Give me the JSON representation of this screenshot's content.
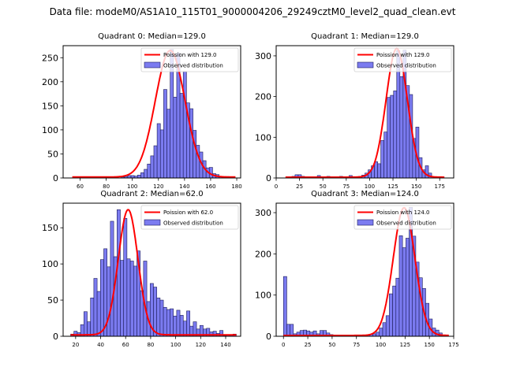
{
  "suptitle": "Data file: modeM0/AS1A10_115T01_9000004206_29249cztM0_level2_quad_clean.evt",
  "colors": {
    "bar_fill": "#7b7bf0",
    "bar_edge": "#1c1c5a",
    "poisson": "#ff0000"
  },
  "chart_data": [
    {
      "type": "bar",
      "title": "Quadrant 0: Median=129.0",
      "median": 129.0,
      "legend": {
        "placement": "top-right",
        "entries": [
          "Poission with 129.0",
          "Observed distribution"
        ]
      },
      "xlim": [
        47,
        183
      ],
      "ylim": [
        0,
        275
      ],
      "xticks": [
        60,
        80,
        100,
        120,
        140,
        160,
        180
      ],
      "yticks": [
        0,
        50,
        100,
        150,
        200,
        250
      ],
      "bin_start": 54,
      "bin_width": 2.5,
      "values": [
        0,
        0,
        0,
        0,
        0,
        0,
        0,
        0,
        0,
        0,
        0,
        1,
        0,
        0,
        0,
        2,
        3,
        5,
        5,
        4,
        6,
        11,
        18,
        29,
        46,
        67,
        113,
        100,
        184,
        143,
        267,
        168,
        260,
        176,
        221,
        156,
        144,
        99,
        68,
        54,
        36,
        21,
        22,
        9,
        7,
        3,
        0,
        3,
        0,
        0
      ],
      "poisson_peak": 265
    },
    {
      "type": "bar",
      "title": "Quadrant 1: Median=129.0",
      "median": 129.0,
      "legend": {
        "placement": "top-right",
        "entries": [
          "Poission with 129.0",
          "Observed distribution"
        ]
      },
      "xlim": [
        0,
        190
      ],
      "ylim": [
        0,
        325
      ],
      "xticks": [
        0,
        25,
        50,
        75,
        100,
        125,
        150,
        175
      ],
      "yticks": [
        0,
        100,
        200,
        300
      ],
      "bin_start": 10,
      "bin_width": 3.4,
      "values": [
        0,
        2,
        4,
        8,
        8,
        4,
        0,
        0,
        2,
        0,
        6,
        3,
        0,
        4,
        3,
        0,
        2,
        4,
        0,
        0,
        6,
        0,
        3,
        4,
        7,
        12,
        20,
        30,
        40,
        35,
        92,
        113,
        198,
        203,
        214,
        313,
        249,
        314,
        227,
        205,
        97,
        125,
        50,
        20,
        30,
        12,
        0,
        0,
        0,
        0
      ],
      "poisson_peak": 318
    },
    {
      "type": "bar",
      "title": "Quadrant 2: Median=62.0",
      "median": 62.0,
      "legend": {
        "placement": "top-right",
        "entries": [
          "Poission with 62.0",
          "Observed distribution"
        ]
      },
      "xlim": [
        10,
        152
      ],
      "ylim": [
        0,
        184
      ],
      "xticks": [
        20,
        40,
        60,
        80,
        100,
        120,
        140
      ],
      "yticks": [
        0,
        50,
        100,
        150
      ],
      "bin_start": 16,
      "bin_width": 2.65,
      "values": [
        3,
        7,
        5,
        16,
        34,
        20,
        53,
        80,
        62,
        106,
        121,
        96,
        159,
        110,
        175,
        105,
        163,
        107,
        104,
        97,
        118,
        63,
        104,
        48,
        73,
        68,
        53,
        50,
        40,
        37,
        38,
        28,
        36,
        29,
        21,
        35,
        14,
        20,
        10,
        15,
        10,
        11,
        6,
        7,
        4,
        8,
        1,
        2,
        2,
        3
      ],
      "poisson_peak": 175
    },
    {
      "type": "bar",
      "title": "Quadrant 3: Median=124.0",
      "median": 124.0,
      "legend": {
        "placement": "top-right",
        "entries": [
          "Poission with 124.0",
          "Observed distribution"
        ]
      },
      "xlim": [
        -7.5,
        175
      ],
      "ylim": [
        0,
        323
      ],
      "xticks": [
        0,
        25,
        50,
        75,
        100,
        125,
        150,
        175
      ],
      "yticks": [
        0,
        100,
        200,
        300
      ],
      "bin_start": 0,
      "bin_width": 3.4,
      "values": [
        145,
        29,
        29,
        6,
        10,
        14,
        15,
        13,
        10,
        13,
        6,
        14,
        14,
        8,
        4,
        2,
        0,
        3,
        3,
        3,
        3,
        3,
        3,
        3,
        3,
        3,
        5,
        6,
        10,
        20,
        33,
        50,
        103,
        122,
        141,
        244,
        215,
        238,
        313,
        243,
        180,
        142,
        116,
        80,
        42,
        20,
        15,
        8,
        0,
        0
      ],
      "poisson_peak": 312
    }
  ]
}
